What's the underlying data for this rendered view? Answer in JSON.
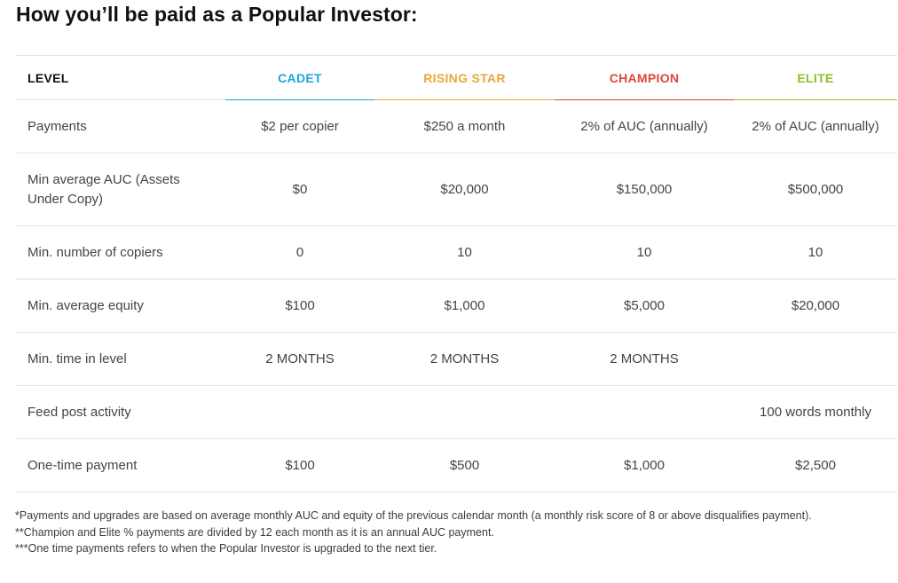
{
  "title": "How you’ll be paid as a Popular Investor:",
  "table": {
    "headers": [
      "LEVEL",
      "CADET",
      "RISING STAR",
      "CHAMPION",
      "ELITE"
    ],
    "rows": [
      {
        "label": "Payments",
        "cells": [
          "$2 per copier",
          "$250 a month",
          "2% of AUC (annually)",
          "2% of AUC (annually)"
        ]
      },
      {
        "label": "Min average AUC (Assets Under Copy)",
        "cells": [
          "$0",
          "$20,000",
          "$150,000",
          "$500,000"
        ]
      },
      {
        "label": "Min. number of copiers",
        "cells": [
          "0",
          "10",
          "10",
          "10"
        ]
      },
      {
        "label": "Min. average equity",
        "cells": [
          "$100",
          "$1,000",
          "$5,000",
          "$20,000"
        ]
      },
      {
        "label": "Min. time in level",
        "cells": [
          "2 MONTHS",
          "2 MONTHS",
          "2 MONTHS",
          ""
        ]
      },
      {
        "label": "Feed post activity",
        "cells": [
          "",
          "",
          "",
          "100 words monthly"
        ]
      },
      {
        "label": "One-time payment",
        "cells": [
          "$100",
          "$500",
          "$1,000",
          "$2,500"
        ]
      }
    ]
  },
  "colors": {
    "cadet": "#1aa6d8",
    "rising_star": "#e8a93a",
    "champion": "#d9483b",
    "elite": "#8cbf2a"
  },
  "notes": [
    "*Payments and upgrades are based on average monthly AUC and equity of the previous calendar month (a monthly risk score of 8 or above disqualifies payment).",
    "**Champion and Elite % payments are divided by 12 each month as it is an annual AUC payment.",
    "***One time payments refers to when the Popular Investor is upgraded to the next tier."
  ]
}
